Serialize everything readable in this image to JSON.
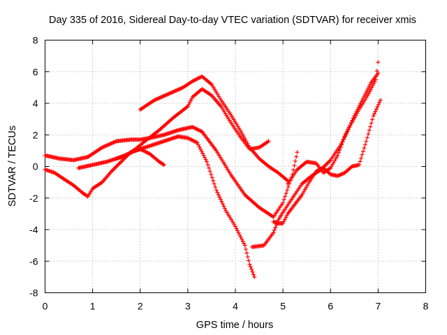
{
  "chart_data": {
    "type": "scatter",
    "title": "Day 335 of 2016, Sidereal Day-to-day VTEC variation (SDTVAR) for receiver xmis",
    "xlabel": "GPS time / hours",
    "ylabel": "SDTVAR / TECUs",
    "xlim": [
      0,
      8
    ],
    "ylim": [
      -8,
      8
    ],
    "xticks": [
      "0",
      "1",
      "2",
      "3",
      "4",
      "5",
      "6",
      "7",
      "8"
    ],
    "yticks": [
      "-8",
      "-6",
      "-4",
      "-2",
      "0",
      "2",
      "4",
      "6",
      "8"
    ],
    "grid": true,
    "marker": "plus",
    "colors": {
      "series": "#ff0000"
    },
    "series": [
      {
        "x": [
          0.0,
          0.3,
          0.6,
          0.9,
          1.2,
          1.5,
          1.8,
          2.0,
          2.2,
          2.5,
          2.8,
          3.1,
          3.3
        ],
        "y": [
          0.7,
          0.5,
          0.4,
          0.6,
          1.2,
          1.6,
          1.7,
          1.7,
          1.8,
          2.0,
          2.3,
          2.5,
          2.2
        ]
      },
      {
        "x": [
          3.3,
          3.6,
          3.9,
          4.2,
          4.5,
          4.8,
          5.0,
          5.2,
          5.3
        ],
        "y": [
          2.2,
          1.0,
          -0.5,
          -1.8,
          -2.6,
          -3.2,
          -2.3,
          -0.5,
          0.9
        ]
      },
      {
        "x": [
          0.0,
          0.2,
          0.4,
          0.6,
          0.8,
          0.9,
          1.0,
          1.2,
          1.4,
          1.6,
          1.8,
          2.0,
          2.2,
          2.4,
          2.5
        ],
        "y": [
          -0.2,
          -0.4,
          -0.8,
          -1.2,
          -1.7,
          -1.9,
          -1.4,
          -1.0,
          -0.3,
          0.3,
          0.9,
          1.1,
          0.8,
          0.3,
          0.1
        ]
      },
      {
        "x": [
          0.7,
          1.0,
          1.3,
          1.6,
          1.9,
          2.2,
          2.5,
          2.8,
          3.0,
          3.2,
          3.4,
          3.6,
          3.8,
          4.0,
          4.2,
          4.3,
          4.4
        ],
        "y": [
          -0.1,
          0.1,
          0.3,
          0.6,
          1.0,
          1.3,
          1.6,
          1.9,
          1.8,
          1.5,
          0.3,
          -1.5,
          -2.8,
          -3.8,
          -5.0,
          -6.2,
          -7.0
        ]
      },
      {
        "x": [
          1.5,
          1.7,
          1.9,
          2.1,
          2.4,
          2.7,
          3.0,
          3.1,
          3.3,
          3.5,
          3.7,
          3.9,
          4.1,
          4.3,
          4.5,
          4.7
        ],
        "y": [
          0.5,
          0.7,
          1.1,
          1.6,
          2.3,
          3.1,
          3.8,
          4.4,
          4.9,
          4.5,
          3.8,
          2.8,
          1.9,
          1.1,
          1.2,
          1.6
        ]
      },
      {
        "x": [
          2.0,
          2.3,
          2.6,
          2.9,
          3.1,
          3.3,
          3.5,
          3.7,
          3.9,
          4.1,
          4.3,
          4.5,
          4.7,
          4.9,
          5.1
        ],
        "y": [
          3.6,
          4.2,
          4.6,
          5.0,
          5.4,
          5.7,
          5.2,
          4.2,
          3.3,
          2.3,
          1.2,
          0.5,
          0.0,
          -0.4,
          -0.9
        ]
      },
      {
        "x": [
          4.35,
          4.6,
          4.8,
          4.9,
          5.0,
          5.2,
          5.4,
          5.6,
          5.8,
          6.0,
          6.2,
          6.4,
          6.6,
          6.8,
          6.95,
          7.0
        ],
        "y": [
          -5.1,
          -5.0,
          -4.2,
          -3.4,
          -2.9,
          -2.0,
          -1.1,
          -0.6,
          -0.2,
          0.4,
          1.3,
          2.5,
          3.6,
          4.6,
          5.5,
          6.6
        ]
      },
      {
        "x": [
          4.8,
          4.9,
          5.0,
          5.1,
          5.25,
          5.4,
          5.55,
          5.7,
          5.85,
          6.0,
          6.15,
          6.3,
          6.45,
          6.6,
          6.75,
          6.9,
          7.05
        ],
        "y": [
          -3.5,
          -3.6,
          -3.6,
          -3.0,
          -2.4,
          -1.8,
          -1.0,
          -0.3,
          -0.1,
          -0.5,
          -0.6,
          -0.4,
          0.0,
          0.1,
          1.6,
          3.2,
          4.2
        ]
      },
      {
        "x": [
          5.1,
          5.3,
          5.5,
          5.7,
          5.85,
          6.0,
          6.15,
          6.3,
          6.5,
          6.7,
          6.85,
          7.0
        ],
        "y": [
          -1.1,
          -0.2,
          0.3,
          0.2,
          -0.4,
          -0.1,
          0.7,
          1.9,
          3.2,
          4.4,
          5.3,
          5.9
        ]
      }
    ]
  }
}
